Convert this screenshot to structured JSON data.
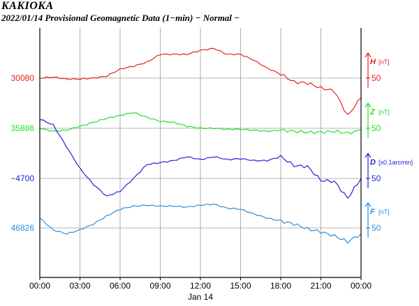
{
  "header": {
    "station": "KAKIOKA",
    "subtitle": "2022/01/14  Provisional Geomagnetic Data (1−min)  − Normal −"
  },
  "chart_data": {
    "type": "line",
    "title": "2022/01/14 Provisional Geomagnetic Data (1-min) - Normal -",
    "x_ticks": [
      "00:00",
      "03:00",
      "06:00",
      "09:00",
      "12:00",
      "15:00",
      "18:00",
      "21:00",
      "00:00"
    ],
    "x_date_label": "Jan 14",
    "xlim": [
      "00:00",
      "24:00"
    ],
    "grid": true,
    "x": [
      "00:00",
      "01:00",
      "02:00",
      "03:00",
      "04:00",
      "05:00",
      "06:00",
      "07:00",
      "08:00",
      "09:00",
      "10:00",
      "11:00",
      "12:00",
      "13:00",
      "14:00",
      "15:00",
      "16:00",
      "17:00",
      "18:00",
      "19:00",
      "20:00",
      "21:00",
      "22:00",
      "23:00",
      "24:00"
    ],
    "series": [
      {
        "name": "H",
        "unit": "[nT]",
        "color": "#e8201c",
        "baseline_label": "30080",
        "scale_tick_label": "50",
        "values": [
          30080,
          30081,
          30079,
          30079,
          30080,
          30082,
          30089,
          30092,
          30096,
          30104,
          30104,
          30104,
          30108,
          30110,
          30104,
          30104,
          30098,
          30090,
          30084,
          30076,
          30075,
          30070,
          30067,
          30042,
          30060
        ]
      },
      {
        "name": "Z",
        "unit": "[nT]",
        "color": "#22dd22",
        "baseline_label": "35886",
        "scale_tick_label": "50",
        "values": [
          35886,
          35883,
          35884,
          35888,
          35892,
          35896,
          35899,
          35902,
          35897,
          35893,
          35892,
          35888,
          35886,
          35886,
          35885,
          35885,
          35884,
          35883,
          35884,
          35883,
          35882,
          35882,
          35883,
          35881,
          35884
        ]
      },
      {
        "name": "D",
        "unit": "[x0.1arcmin]",
        "color": "#2222dd",
        "baseline_label": "−4700",
        "scale_tick_label": "50",
        "values": [
          -4640,
          -4646,
          -4668,
          -4690,
          -4706,
          -4718,
          -4713,
          -4700,
          -4686,
          -4684,
          -4682,
          -4678,
          -4681,
          -4678,
          -4681,
          -4680,
          -4682,
          -4682,
          -4678,
          -4687,
          -4688,
          -4702,
          -4703,
          -4720,
          -4700
        ]
      },
      {
        "name": "F",
        "unit": "[nT]",
        "color": "#2a8fe0",
        "baseline_label": "46826",
        "scale_tick_label": "50",
        "values": [
          46836,
          46824,
          46820,
          46824,
          46830,
          46838,
          46845,
          46848,
          46849,
          46848,
          46848,
          46847,
          46849,
          46850,
          46846,
          46845,
          46840,
          46836,
          46833,
          46830,
          46825,
          46822,
          46818,
          46812,
          46820
        ]
      }
    ]
  }
}
